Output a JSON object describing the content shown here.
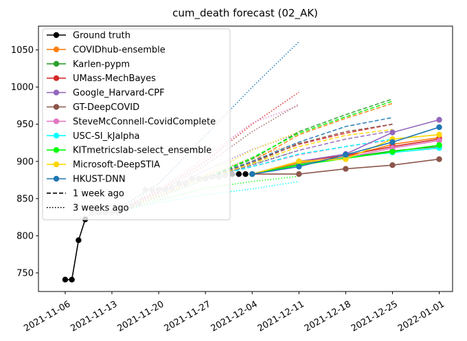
{
  "chart_data": {
    "type": "line",
    "title": "cum_death forecast (02_AK)",
    "xlabel": "",
    "ylabel": "",
    "xlim": [
      "2021-11-02",
      "2022-01-03"
    ],
    "ylim": [
      725,
      1082
    ],
    "x_ticks": [
      "2021-11-06",
      "2021-11-13",
      "2021-11-20",
      "2021-11-27",
      "2021-12-04",
      "2021-12-11",
      "2021-12-18",
      "2021-12-25",
      "2022-01-01"
    ],
    "y_ticks": [
      750,
      800,
      850,
      900,
      950,
      1000,
      1050
    ],
    "grid": false,
    "legend_position": "top-left",
    "legend": [
      {
        "label": "Ground truth",
        "color": "#000000",
        "style": "solid-marker"
      },
      {
        "label": "COVIDhub-ensemble",
        "color": "#ff7f0e",
        "style": "solid-marker"
      },
      {
        "label": "Karlen-pypm",
        "color": "#2ca02c",
        "style": "solid-marker"
      },
      {
        "label": "UMass-MechBayes",
        "color": "#d62728",
        "style": "solid-marker"
      },
      {
        "label": "Google_Harvard-CPF",
        "color": "#9467bd",
        "style": "solid-marker"
      },
      {
        "label": "GT-DeepCOVID",
        "color": "#8c564b",
        "style": "solid-marker"
      },
      {
        "label": "SteveMcConnell-CovidComplete",
        "color": "#e377c2",
        "style": "solid-marker"
      },
      {
        "label": "USC-SI_kJalpha",
        "color": "#00ffff",
        "style": "solid-marker"
      },
      {
        "label": "KITmetricslab-select_ensemble",
        "color": "#00ff00",
        "style": "solid-marker"
      },
      {
        "label": "Microsoft-DeepSTIA",
        "color": "#ffd700",
        "style": "solid-marker"
      },
      {
        "label": "HKUST-DNN",
        "color": "#1f77b4",
        "style": "solid-marker"
      },
      {
        "label": "1 week ago",
        "color": "#000000",
        "style": "dashed"
      },
      {
        "label": "3 weeks ago",
        "color": "#000000",
        "style": "dotted"
      }
    ],
    "ground_truth": {
      "name": "Ground truth",
      "x": [
        "2021-11-06",
        "2021-11-07",
        "2021-11-08",
        "2021-11-09",
        "2021-11-10",
        "2021-11-11",
        "2021-11-12",
        "2021-11-13",
        "2021-11-14",
        "2021-11-15",
        "2021-11-16",
        "2021-11-17",
        "2021-11-18",
        "2021-11-19",
        "2021-11-20",
        "2021-11-21",
        "2021-11-22",
        "2021-11-23",
        "2021-11-24",
        "2021-11-25",
        "2021-11-26",
        "2021-11-27",
        "2021-11-28",
        "2021-11-29",
        "2021-11-30",
        "2021-12-01",
        "2021-12-02",
        "2021-12-03",
        "2021-12-04"
      ],
      "y": [
        741,
        741,
        794,
        822,
        831,
        831,
        831,
        831,
        831,
        836,
        840,
        843,
        862,
        862,
        862,
        862,
        864,
        870,
        870,
        877,
        877,
        877,
        879,
        879,
        881,
        883,
        883,
        883,
        883
      ],
      "highlight_from": "2021-12-02"
    },
    "current_forecasts": {
      "x": [
        "2021-12-04",
        "2021-12-11",
        "2021-12-18",
        "2021-12-25",
        "2022-01-01"
      ],
      "series": [
        {
          "name": "COVIDhub-ensemble",
          "color": "#ff7f0e",
          "values": [
            883,
            898,
            906,
            923,
            932
          ]
        },
        {
          "name": "Karlen-pypm",
          "color": "#2ca02c",
          "values": [
            883,
            896,
            905,
            914,
            920
          ]
        },
        {
          "name": "UMass-MechBayes",
          "color": "#d62728",
          "values": [
            883,
            900,
            908,
            920,
            930
          ]
        },
        {
          "name": "Google_Harvard-CPF",
          "color": "#9467bd",
          "values": [
            883,
            900,
            910,
            939,
            956
          ]
        },
        {
          "name": "GT-DeepCOVID",
          "color": "#8c564b",
          "values": [
            883,
            883,
            890,
            895,
            903
          ]
        },
        {
          "name": "SteveMcConnell-CovidComplete",
          "color": "#e377c2",
          "values": [
            883,
            895,
            905,
            918,
            928
          ]
        },
        {
          "name": "USC-SI_kJalpha",
          "color": "#00ffff",
          "values": [
            883,
            895,
            905,
            912,
            918
          ]
        },
        {
          "name": "KITmetricslab-select_ensemble",
          "color": "#00ff00",
          "values": [
            883,
            895,
            904,
            913,
            922
          ]
        },
        {
          "name": "Microsoft-DeepSTIA",
          "color": "#ffd700",
          "values": [
            883,
            900,
            903,
            930,
            936
          ]
        },
        {
          "name": "HKUST-DNN",
          "color": "#1f77b4",
          "values": [
            883,
            893,
            909,
            926,
            946
          ]
        }
      ]
    },
    "forecasts_1_week_ago": {
      "x": [
        "2021-11-27",
        "2021-12-04",
        "2021-12-11",
        "2021-12-18",
        "2021-12-25"
      ],
      "series": [
        {
          "name": "COVIDhub-ensemble",
          "color": "#ff7f0e",
          "values": [
            877,
            900,
            936,
            958,
            978
          ]
        },
        {
          "name": "Karlen-pypm",
          "color": "#2ca02c",
          "values": [
            877,
            903,
            940,
            963,
            984
          ]
        },
        {
          "name": "UMass-MechBayes",
          "color": "#d62728",
          "values": [
            877,
            900,
            923,
            938,
            950
          ]
        },
        {
          "name": "Google_Harvard-CPF",
          "color": "#9467bd",
          "values": [
            877,
            895,
            915,
            930,
            941
          ]
        },
        {
          "name": "GT-DeepCOVID",
          "color": "#8c564b",
          "values": [
            877,
            898,
            924,
            940,
            950
          ]
        },
        {
          "name": "SteveMcConnell-CovidComplete",
          "color": "#e377c2",
          "values": [
            877,
            893,
            909,
            920,
            929
          ]
        },
        {
          "name": "USC-SI_kJalpha",
          "color": "#00ffff",
          "values": [
            877,
            893,
            910,
            920,
            930
          ]
        },
        {
          "name": "KITmetricslab-select_ensemble",
          "color": "#00ff00",
          "values": [
            877,
            905,
            938,
            960,
            981
          ]
        },
        {
          "name": "Microsoft-DeepSTIA",
          "color": "#ffd700",
          "values": [
            877,
            897,
            920,
            935,
            943
          ]
        },
        {
          "name": "HKUST-DNN",
          "color": "#1f77b4",
          "values": [
            877,
            900,
            926,
            947,
            959
          ]
        }
      ]
    },
    "forecasts_3_weeks_ago": {
      "x": [
        "2021-11-13",
        "2021-11-20",
        "2021-11-27",
        "2021-12-04",
        "2021-12-11"
      ],
      "series": [
        {
          "name": "COVIDhub-ensemble",
          "color": "#ff7f0e",
          "values": [
            831,
            853,
            880,
            905,
            925
          ]
        },
        {
          "name": "Karlen-pypm",
          "color": "#2ca02c",
          "values": [
            831,
            852,
            876,
            896,
            915
          ]
        },
        {
          "name": "UMass-MechBayes",
          "color": "#d62728",
          "values": [
            831,
            860,
            900,
            950,
            993
          ]
        },
        {
          "name": "Google_Harvard-CPF",
          "color": "#9467bd",
          "values": [
            831,
            856,
            888,
            916,
            938
          ]
        },
        {
          "name": "GT-DeepCOVID",
          "color": "#8c564b",
          "values": [
            831,
            858,
            895,
            940,
            977
          ]
        },
        {
          "name": "SteveMcConnell-CovidComplete",
          "color": "#e377c2",
          "values": [
            831,
            862,
            905,
            952,
            975
          ]
        },
        {
          "name": "USC-SI_kJalpha",
          "color": "#00ffff",
          "values": [
            831,
            845,
            855,
            863,
            873
          ]
        },
        {
          "name": "KITmetricslab-select_ensemble",
          "color": "#00ff00",
          "values": [
            831,
            848,
            864,
            873,
            880
          ]
        },
        {
          "name": "Microsoft-DeepSTIA",
          "color": "#ffd700",
          "values": [
            831,
            854,
            882,
            915,
            940
          ]
        },
        {
          "name": "HKUST-DNN",
          "color": "#1f77b4",
          "values": [
            831,
            870,
            935,
            1000,
            1061
          ]
        }
      ]
    }
  }
}
